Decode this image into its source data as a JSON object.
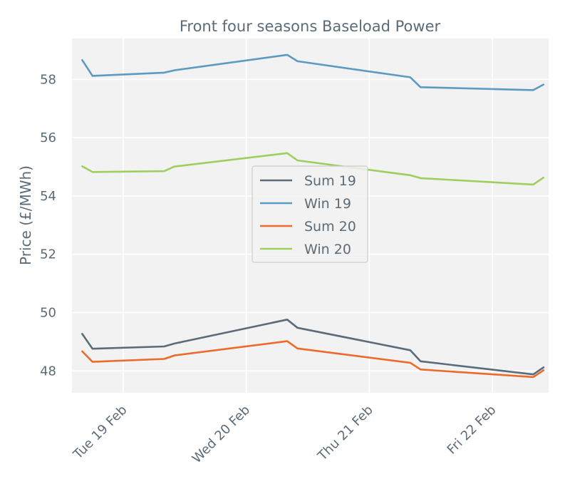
{
  "chart_data": {
    "type": "line",
    "title": "Front four seasons Baseload Power",
    "xlabel": "",
    "ylabel": "Price (£/MWh)",
    "ylim": [
      47.25,
      59.4
    ],
    "yticks": [
      48,
      50,
      52,
      54,
      56,
      58
    ],
    "ytick_labels": [
      "48",
      "50",
      "52",
      "54",
      "56",
      "58"
    ],
    "xticks": [
      "Tue 19 Feb",
      "Wed 20 Feb",
      "Thu 21 Feb",
      "Fri 22 Feb"
    ],
    "x": [
      "2019-02-18 16:00",
      "2019-02-18 18:00",
      "2019-02-19 08:00",
      "2019-02-19 10:00",
      "2019-02-20 08:00",
      "2019-02-20 10:00",
      "2019-02-21 08:00",
      "2019-02-21 10:00",
      "2019-02-22 08:00",
      "2019-02-22 10:00"
    ],
    "grid": true,
    "legend_position": "center",
    "series": [
      {
        "name": "Sum 19",
        "color": "#5a6b7b",
        "values": [
          49.27,
          48.76,
          48.84,
          48.94,
          49.76,
          49.48,
          48.71,
          48.33,
          47.88,
          48.12
        ]
      },
      {
        "name": "Win 19",
        "color": "#5b9bc1",
        "values": [
          58.66,
          58.12,
          58.23,
          58.31,
          58.84,
          58.62,
          58.07,
          57.73,
          57.63,
          57.82
        ]
      },
      {
        "name": "Sum 20",
        "color": "#ec6a2a",
        "values": [
          48.67,
          48.31,
          48.41,
          48.53,
          49.02,
          48.77,
          48.28,
          48.05,
          47.79,
          48.02
        ]
      },
      {
        "name": "Win 20",
        "color": "#9ecf5e",
        "values": [
          55.02,
          54.82,
          54.85,
          55.01,
          55.47,
          55.22,
          54.71,
          54.61,
          54.39,
          54.63
        ]
      }
    ]
  }
}
